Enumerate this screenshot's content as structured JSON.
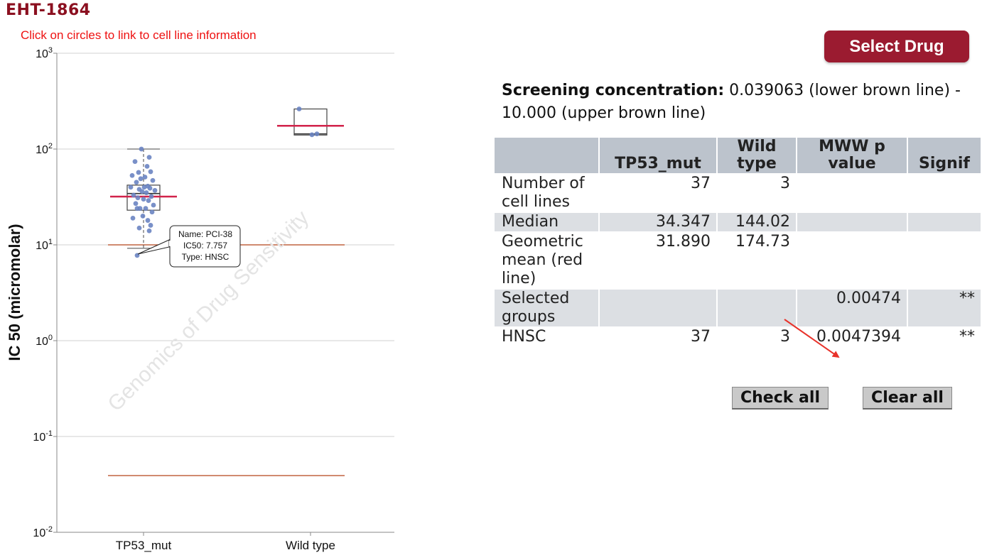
{
  "header": {
    "title": "EHT-1864",
    "instruction": "Click on circles to link to cell line information",
    "select_drug_label": "Select Drug"
  },
  "screening": {
    "label": "Screening concentration:",
    "text": " 0.039063 (lower brown line) - 10.000 (upper brown line)"
  },
  "table": {
    "headers": [
      "",
      "TP53_mut",
      "Wild type",
      "MWW p value",
      "Signif"
    ],
    "rows": [
      {
        "label": "Number of cell lines",
        "tp53": "37",
        "wild": "3",
        "p": "",
        "signif": ""
      },
      {
        "label": "Median",
        "tp53": "34.347",
        "wild": "144.02",
        "p": "",
        "signif": ""
      },
      {
        "label": "Geometric mean (red line)",
        "tp53": "31.890",
        "wild": "174.73",
        "p": "",
        "signif": ""
      },
      {
        "label": "Selected groups",
        "tp53": "",
        "wild": "",
        "p": "0.00474",
        "signif": "**"
      },
      {
        "label": "HNSC",
        "tp53": "37",
        "wild": "3",
        "p": "0.0047394",
        "signif": "**"
      }
    ]
  },
  "buttons": {
    "check_all": "Check all",
    "clear_all": "Clear all"
  },
  "tooltip": {
    "line1": "Name: PCI-38",
    "line2": "IC50: 7.757",
    "line3": "Type: HNSC"
  },
  "watermark": "Genomics of Drug Sensitivity",
  "colors": {
    "title": "#8b1020",
    "button": "#9b1b30",
    "point": "#6a84c2",
    "mean_line": "#d1224a",
    "screening_line": "#b5451b",
    "annotation_arrow": "#e8322a"
  },
  "chart_data": {
    "type": "scatter",
    "subtype": "box-strip",
    "ylabel": "IC 50 (micromolar)",
    "yscale": "log",
    "ylim": [
      0.01,
      1000
    ],
    "y_ticks": [
      {
        "base": "10",
        "exp": "3",
        "value": 1000
      },
      {
        "base": "10",
        "exp": "2",
        "value": 100
      },
      {
        "base": "10",
        "exp": "1",
        "value": 10
      },
      {
        "base": "10",
        "exp": "0",
        "value": 1
      },
      {
        "base": "10",
        "exp": "-1",
        "value": 0.1
      },
      {
        "base": "10",
        "exp": "-2",
        "value": 0.01
      }
    ],
    "grid": true,
    "categories": [
      "TP53_mut",
      "Wild type"
    ],
    "screening_lines": [
      10.0,
      0.039063
    ],
    "groups": [
      {
        "name": "TP53_mut",
        "box": {
          "q1": 23,
          "median": 34.347,
          "q3": 42,
          "whisker_low": 9.2,
          "whisker_high": 100
        },
        "geo_mean": 31.89,
        "points": [
          100,
          82,
          74,
          66,
          57,
          58,
          53,
          51,
          49,
          47,
          45,
          41,
          40,
          40,
          39,
          38,
          37,
          36,
          35,
          33,
          32,
          31,
          30,
          29,
          27,
          26,
          24,
          24,
          24,
          22,
          20,
          19,
          18,
          16,
          15,
          14,
          7.757
        ]
      },
      {
        "name": "Wild type",
        "box": {
          "q1": 140,
          "median": 144.02,
          "q3": 262,
          "whisker_low": 140,
          "whisker_high": 262
        },
        "geo_mean": 174.73,
        "points": [
          262,
          144.02,
          141
        ]
      }
    ]
  }
}
